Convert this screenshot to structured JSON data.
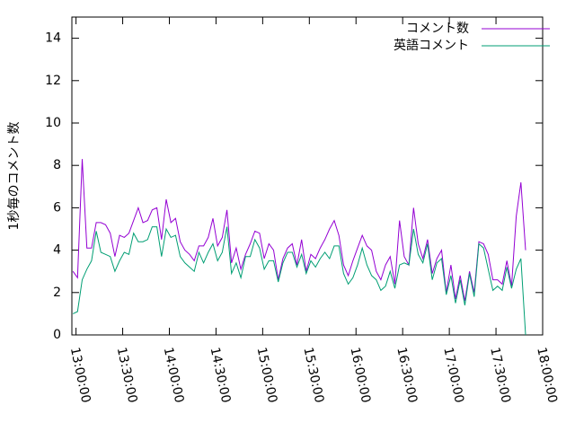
{
  "chart_data": {
    "type": "line",
    "ylabel": "1秒毎のコメント数",
    "x": [
      "12:58:00",
      "13:01:00",
      "13:04:00",
      "13:07:00",
      "13:10:00",
      "13:13:00",
      "13:16:00",
      "13:19:00",
      "13:22:00",
      "13:25:00",
      "13:28:00",
      "13:31:00",
      "13:34:00",
      "13:37:00",
      "13:40:00",
      "13:43:00",
      "13:46:00",
      "13:49:00",
      "13:52:00",
      "13:55:00",
      "13:58:00",
      "14:01:00",
      "14:04:00",
      "14:07:00",
      "14:10:00",
      "14:13:00",
      "14:16:00",
      "14:19:00",
      "14:22:00",
      "14:25:00",
      "14:28:00",
      "14:31:00",
      "14:34:00",
      "14:37:00",
      "14:40:00",
      "14:43:00",
      "14:46:00",
      "14:49:00",
      "14:52:00",
      "14:55:00",
      "14:58:00",
      "15:01:00",
      "15:04:00",
      "15:07:00",
      "15:10:00",
      "15:13:00",
      "15:16:00",
      "15:19:00",
      "15:22:00",
      "15:25:00",
      "15:28:00",
      "15:31:00",
      "15:34:00",
      "15:37:00",
      "15:40:00",
      "15:43:00",
      "15:46:00",
      "15:49:00",
      "15:52:00",
      "15:55:00",
      "15:58:00",
      "16:01:00",
      "16:04:00",
      "16:07:00",
      "16:10:00",
      "16:13:00",
      "16:16:00",
      "16:19:00",
      "16:22:00",
      "16:25:00",
      "16:28:00",
      "16:31:00",
      "16:34:00",
      "16:37:00",
      "16:40:00",
      "16:43:00",
      "16:46:00",
      "16:49:00",
      "16:52:00",
      "16:55:00",
      "16:58:00",
      "17:01:00",
      "17:04:00",
      "17:07:00",
      "17:10:00",
      "17:13:00",
      "17:16:00",
      "17:19:00",
      "17:22:00",
      "17:25:00",
      "17:28:00",
      "17:31:00",
      "17:34:00",
      "17:37:00",
      "17:40:00",
      "17:43:00",
      "17:46:00",
      "17:49:00"
    ],
    "series": [
      {
        "name": "コメント数",
        "color": "#9400d3",
        "values": [
          3.0,
          2.7,
          8.3,
          4.1,
          4.1,
          5.3,
          5.3,
          5.2,
          4.8,
          3.7,
          4.7,
          4.6,
          4.8,
          5.4,
          6.0,
          5.3,
          5.4,
          5.9,
          6.0,
          4.5,
          6.4,
          5.3,
          5.5,
          4.4,
          4.0,
          3.8,
          3.5,
          4.2,
          4.2,
          4.6,
          5.5,
          4.2,
          4.6,
          5.9,
          3.4,
          4.1,
          3.1,
          3.8,
          4.3,
          4.9,
          4.8,
          3.6,
          4.3,
          4.0,
          2.6,
          3.6,
          4.1,
          4.3,
          3.3,
          4.5,
          3.0,
          3.8,
          3.6,
          4.1,
          4.5,
          5.0,
          5.4,
          4.7,
          3.3,
          2.8,
          3.5,
          4.1,
          4.7,
          4.2,
          4.0,
          3.0,
          2.6,
          3.3,
          3.7,
          2.4,
          5.4,
          3.7,
          3.3,
          6.0,
          4.3,
          3.6,
          4.5,
          2.9,
          3.6,
          4.0,
          2.0,
          3.3,
          1.7,
          2.8,
          1.6,
          3.0,
          2.0,
          4.4,
          4.3,
          3.8,
          2.6,
          2.6,
          2.4,
          3.5,
          2.3,
          5.6,
          7.2,
          4.0
        ]
      },
      {
        "name": "英語コメント",
        "color": "#009e73",
        "values": [
          1.0,
          1.1,
          2.6,
          3.1,
          3.5,
          4.9,
          3.9,
          3.8,
          3.7,
          3.0,
          3.5,
          3.9,
          3.8,
          4.8,
          4.4,
          4.4,
          4.5,
          5.1,
          5.1,
          3.7,
          5.0,
          4.6,
          4.7,
          3.7,
          3.4,
          3.2,
          3.0,
          3.9,
          3.4,
          3.9,
          4.3,
          3.5,
          3.9,
          5.1,
          2.9,
          3.4,
          2.7,
          3.7,
          3.7,
          4.5,
          4.1,
          3.1,
          3.5,
          3.5,
          2.5,
          3.4,
          3.9,
          3.9,
          3.2,
          3.8,
          2.9,
          3.5,
          3.2,
          3.6,
          3.9,
          3.6,
          4.2,
          4.2,
          2.9,
          2.4,
          2.7,
          3.3,
          4.1,
          3.3,
          2.8,
          2.6,
          2.1,
          2.3,
          3.0,
          2.2,
          3.3,
          3.4,
          3.3,
          5.0,
          3.8,
          3.4,
          4.3,
          2.6,
          3.4,
          3.6,
          1.9,
          2.8,
          1.5,
          2.6,
          1.4,
          2.9,
          1.8,
          4.3,
          4.1,
          3.1,
          2.1,
          2.3,
          2.1,
          3.2,
          2.2,
          3.1,
          3.6,
          0
        ]
      }
    ],
    "xlim": [
      "12:57:20",
      "18:00:00"
    ],
    "xticks": [
      "13:00:00",
      "13:30:00",
      "14:00:00",
      "14:30:00",
      "15:00:00",
      "15:30:00",
      "16:00:00",
      "16:30:00",
      "17:00:00",
      "17:30:00",
      "18:00:00"
    ],
    "ylim": [
      0,
      15
    ],
    "yticks": [
      0,
      2,
      4,
      6,
      8,
      10,
      12,
      14
    ],
    "legend": "top-right"
  }
}
